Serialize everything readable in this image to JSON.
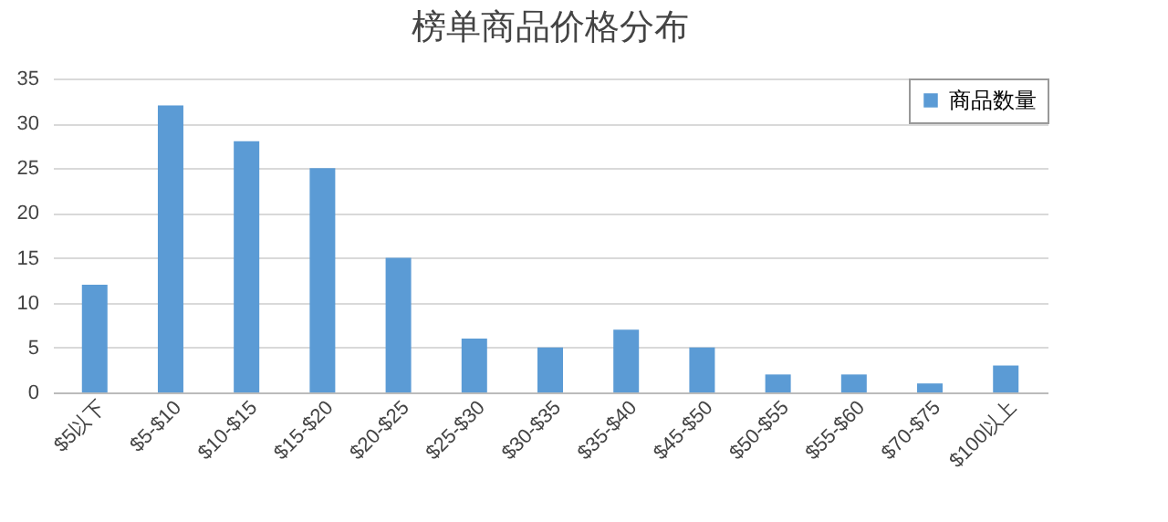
{
  "chart_data": {
    "type": "bar",
    "title": "榜单商品价格分布",
    "categories": [
      "$5以下",
      "$5-$10",
      "$10-$15",
      "$15-$20",
      "$20-$25",
      "$25-$30",
      "$30-$35",
      "$35-$40",
      "$45-$50",
      "$50-$55",
      "$55-$60",
      "$70-$75",
      "$100以上"
    ],
    "series": [
      {
        "name": "商品数量",
        "color": "#5b9bd5",
        "values": [
          12,
          32,
          28,
          25,
          15,
          6,
          5,
          7,
          5,
          2,
          2,
          1,
          3
        ]
      }
    ],
    "ylim": [
      0,
      35
    ],
    "yticks": [
      0,
      5,
      10,
      15,
      20,
      25,
      30,
      35
    ],
    "grid": "y",
    "legend": "top right"
  }
}
